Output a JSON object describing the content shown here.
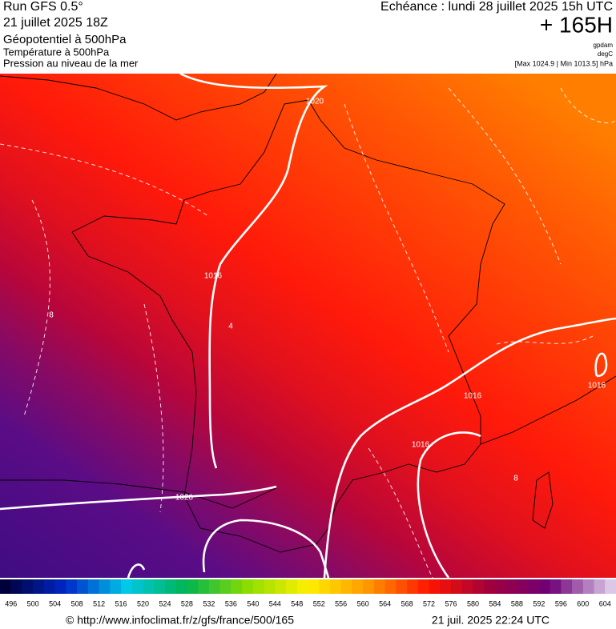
{
  "header": {
    "run": "Run GFS 0.5°",
    "run_date": "21 juillet 2025 18Z",
    "field1": "Géopotentiel à 500hPa",
    "field2": "Température à 500hPa",
    "field3": "Pression au niveau de la mer",
    "valid": "Echéance : lundi 28 juillet 2025 15h UTC",
    "lead": "+ 165H",
    "unit1": "gpdam",
    "unit2": "degC",
    "range": "[Max 1024.9 | Min 1013.5] hPa"
  },
  "map": {
    "contour_labels": [
      "1020",
      "1016",
      "1020",
      "1016",
      "1016",
      "1016",
      "8",
      "8",
      "4"
    ]
  },
  "colorbar": {
    "labels": [
      496,
      500,
      504,
      508,
      512,
      516,
      520,
      524,
      528,
      532,
      536,
      540,
      544,
      548,
      552,
      556,
      560,
      564,
      568,
      572,
      576,
      580,
      584,
      588,
      592,
      596,
      600,
      604
    ]
  },
  "footer": {
    "url": "© http://www.infoclimat.fr/z/gfs/france/500/165",
    "date": "21 juil. 2025 22:24 UTC"
  }
}
